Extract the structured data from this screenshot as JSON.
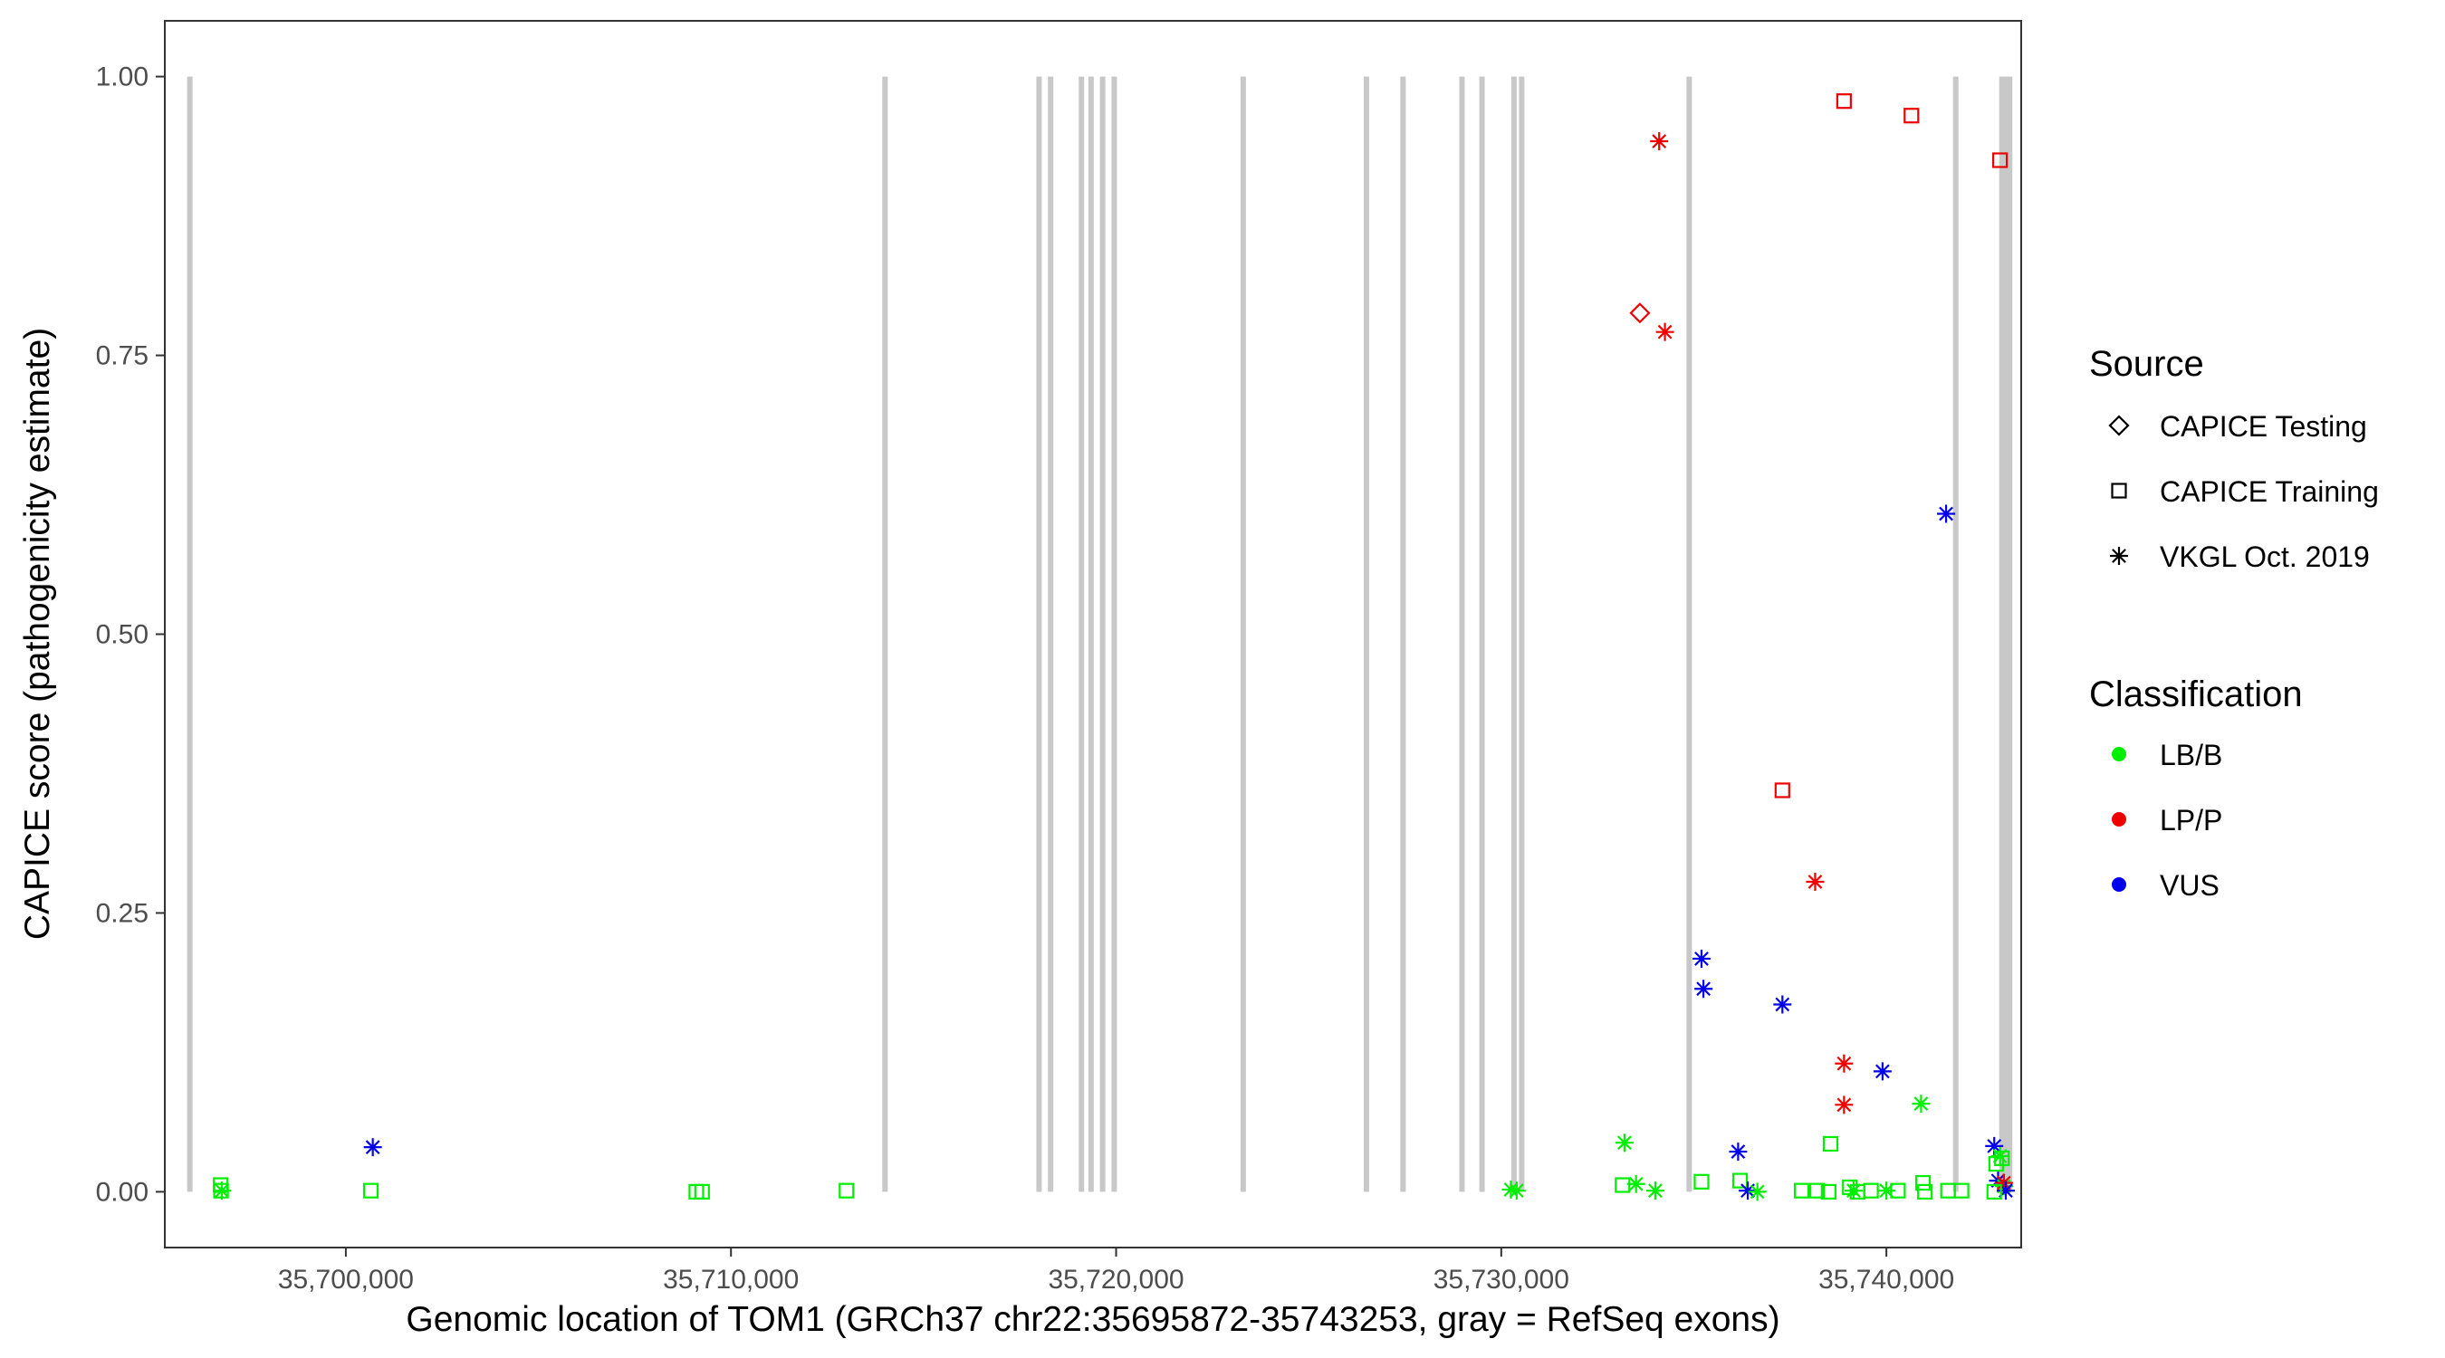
{
  "chart_data": {
    "type": "scatter",
    "xlabel": "Genomic location of TOM1 (GRCh37 chr22:35695872-35743253, gray = RefSeq exons)",
    "ylabel": "CAPICE score (pathogenicity estimate)",
    "xlim": [
      35695300,
      35743500
    ],
    "ylim": [
      -0.05,
      1.05
    ],
    "x_ticks": [
      35700000,
      35710000,
      35720000,
      35730000,
      35740000
    ],
    "x_tick_labels": [
      "35,700,000",
      "35,710,000",
      "35,720,000",
      "35,730,000",
      "35,740,000"
    ],
    "y_ticks": [
      0,
      0.25,
      0.5,
      0.75,
      1.0
    ],
    "y_tick_labels": [
      "0.00",
      "0.25",
      "0.50",
      "0.75",
      "1.00"
    ],
    "grid": false,
    "exon_color": "#c8c8c8",
    "exons": [
      35695950,
      35714000,
      35718000,
      35718300,
      35719100,
      35719350,
      35719650,
      35719950,
      35723300,
      35726500,
      35727450,
      35728980,
      35729500,
      35730330,
      35730530,
      35734880,
      35741800,
      35743000,
      35743120,
      35743200
    ],
    "legend": {
      "position": "right",
      "source_title": "Source",
      "source_items": [
        {
          "label": "CAPICE Testing",
          "shape": "diamond"
        },
        {
          "label": "CAPICE Training",
          "shape": "square"
        },
        {
          "label": "VKGL Oct. 2019",
          "shape": "asterisk"
        }
      ],
      "class_title": "Classification",
      "class_items": [
        {
          "label": "LB/B",
          "color": "#00ee00"
        },
        {
          "label": "LP/P",
          "color": "#ee0000"
        },
        {
          "label": "VUS",
          "color": "#0000ee"
        }
      ]
    },
    "points": [
      {
        "x": 35696750,
        "y": 0.006,
        "source": "CAPICE Training",
        "class": "LB/B"
      },
      {
        "x": 35696760,
        "y": 0.001,
        "source": "CAPICE Training",
        "class": "LB/B"
      },
      {
        "x": 35696780,
        "y": 0.001,
        "source": "VKGL Oct. 2019",
        "class": "LB/B"
      },
      {
        "x": 35700700,
        "y": 0.04,
        "source": "VKGL Oct. 2019",
        "class": "VUS"
      },
      {
        "x": 35700650,
        "y": 0.001,
        "source": "CAPICE Training",
        "class": "LB/B"
      },
      {
        "x": 35709100,
        "y": 0.0,
        "source": "CAPICE Training",
        "class": "LB/B"
      },
      {
        "x": 35709250,
        "y": 0.0,
        "source": "CAPICE Training",
        "class": "LB/B"
      },
      {
        "x": 35713000,
        "y": 0.001,
        "source": "CAPICE Training",
        "class": "LB/B"
      },
      {
        "x": 35730250,
        "y": 0.002,
        "source": "VKGL Oct. 2019",
        "class": "LB/B"
      },
      {
        "x": 35730400,
        "y": 0.001,
        "source": "VKGL Oct. 2019",
        "class": "LB/B"
      },
      {
        "x": 35733200,
        "y": 0.044,
        "source": "VKGL Oct. 2019",
        "class": "LB/B"
      },
      {
        "x": 35733150,
        "y": 0.006,
        "source": "CAPICE Training",
        "class": "LB/B"
      },
      {
        "x": 35733500,
        "y": 0.007,
        "source": "VKGL Oct. 2019",
        "class": "LB/B"
      },
      {
        "x": 35734000,
        "y": 0.001,
        "source": "VKGL Oct. 2019",
        "class": "LB/B"
      },
      {
        "x": 35733600,
        "y": 0.788,
        "source": "CAPICE Testing",
        "class": "LP/P"
      },
      {
        "x": 35734100,
        "y": 0.942,
        "source": "VKGL Oct. 2019",
        "class": "LP/P"
      },
      {
        "x": 35734250,
        "y": 0.771,
        "source": "VKGL Oct. 2019",
        "class": "LP/P"
      },
      {
        "x": 35735200,
        "y": 0.209,
        "source": "VKGL Oct. 2019",
        "class": "VUS"
      },
      {
        "x": 35735250,
        "y": 0.182,
        "source": "VKGL Oct. 2019",
        "class": "VUS"
      },
      {
        "x": 35735200,
        "y": 0.009,
        "source": "CAPICE Training",
        "class": "LB/B"
      },
      {
        "x": 35736150,
        "y": 0.036,
        "source": "VKGL Oct. 2019",
        "class": "VUS"
      },
      {
        "x": 35736200,
        "y": 0.01,
        "source": "CAPICE Training",
        "class": "LB/B"
      },
      {
        "x": 35736400,
        "y": 0.001,
        "source": "VKGL Oct. 2019",
        "class": "VUS"
      },
      {
        "x": 35736650,
        "y": 0.0,
        "source": "VKGL Oct. 2019",
        "class": "LB/B"
      },
      {
        "x": 35737300,
        "y": 0.36,
        "source": "CAPICE Training",
        "class": "LP/P"
      },
      {
        "x": 35737300,
        "y": 0.168,
        "source": "VKGL Oct. 2019",
        "class": "VUS"
      },
      {
        "x": 35737800,
        "y": 0.001,
        "source": "CAPICE Training",
        "class": "LB/B"
      },
      {
        "x": 35738150,
        "y": 0.278,
        "source": "VKGL Oct. 2019",
        "class": "LP/P"
      },
      {
        "x": 35738200,
        "y": 0.001,
        "source": "CAPICE Training",
        "class": "LB/B"
      },
      {
        "x": 35738550,
        "y": 0.043,
        "source": "CAPICE Training",
        "class": "LB/B"
      },
      {
        "x": 35738500,
        "y": 0.0,
        "source": "CAPICE Training",
        "class": "LB/B"
      },
      {
        "x": 35738900,
        "y": 0.978,
        "source": "CAPICE Training",
        "class": "LP/P"
      },
      {
        "x": 35738900,
        "y": 0.115,
        "source": "VKGL Oct. 2019",
        "class": "LP/P"
      },
      {
        "x": 35738900,
        "y": 0.078,
        "source": "VKGL Oct. 2019",
        "class": "LP/P"
      },
      {
        "x": 35739050,
        "y": 0.004,
        "source": "CAPICE Training",
        "class": "LB/B"
      },
      {
        "x": 35739150,
        "y": 0.001,
        "source": "VKGL Oct. 2019",
        "class": "LB/B"
      },
      {
        "x": 35739250,
        "y": 0.0,
        "source": "CAPICE Training",
        "class": "LB/B"
      },
      {
        "x": 35739600,
        "y": 0.001,
        "source": "CAPICE Training",
        "class": "LB/B"
      },
      {
        "x": 35739900,
        "y": 0.108,
        "source": "VKGL Oct. 2019",
        "class": "VUS"
      },
      {
        "x": 35740000,
        "y": 0.001,
        "source": "VKGL Oct. 2019",
        "class": "LB/B"
      },
      {
        "x": 35740300,
        "y": 0.001,
        "source": "CAPICE Training",
        "class": "LB/B"
      },
      {
        "x": 35740650,
        "y": 0.965,
        "source": "CAPICE Training",
        "class": "LP/P"
      },
      {
        "x": 35740900,
        "y": 0.079,
        "source": "VKGL Oct. 2019",
        "class": "LB/B"
      },
      {
        "x": 35740950,
        "y": 0.008,
        "source": "CAPICE Training",
        "class": "LB/B"
      },
      {
        "x": 35741000,
        "y": 0.0,
        "source": "CAPICE Training",
        "class": "LB/B"
      },
      {
        "x": 35741550,
        "y": 0.608,
        "source": "VKGL Oct. 2019",
        "class": "VUS"
      },
      {
        "x": 35741600,
        "y": 0.001,
        "source": "CAPICE Training",
        "class": "LB/B"
      },
      {
        "x": 35741950,
        "y": 0.001,
        "source": "CAPICE Training",
        "class": "LB/B"
      },
      {
        "x": 35742800,
        "y": 0.041,
        "source": "VKGL Oct. 2019",
        "class": "VUS"
      },
      {
        "x": 35742850,
        "y": 0.025,
        "source": "CAPICE Training",
        "class": "LB/B"
      },
      {
        "x": 35742900,
        "y": 0.01,
        "source": "VKGL Oct. 2019",
        "class": "VUS"
      },
      {
        "x": 35742950,
        "y": 0.032,
        "source": "VKGL Oct. 2019",
        "class": "LB/B"
      },
      {
        "x": 35742950,
        "y": 0.925,
        "source": "CAPICE Training",
        "class": "LP/P"
      },
      {
        "x": 35743000,
        "y": 0.03,
        "source": "CAPICE Training",
        "class": "LB/B"
      },
      {
        "x": 35743050,
        "y": 0.005,
        "source": "VKGL Oct. 2019",
        "class": "LB/B"
      },
      {
        "x": 35743050,
        "y": 0.008,
        "source": "VKGL Oct. 2019",
        "class": "LP/P"
      },
      {
        "x": 35743100,
        "y": 0.001,
        "source": "VKGL Oct. 2019",
        "class": "VUS"
      },
      {
        "x": 35742800,
        "y": 0.0,
        "source": "CAPICE Training",
        "class": "LB/B"
      }
    ]
  }
}
